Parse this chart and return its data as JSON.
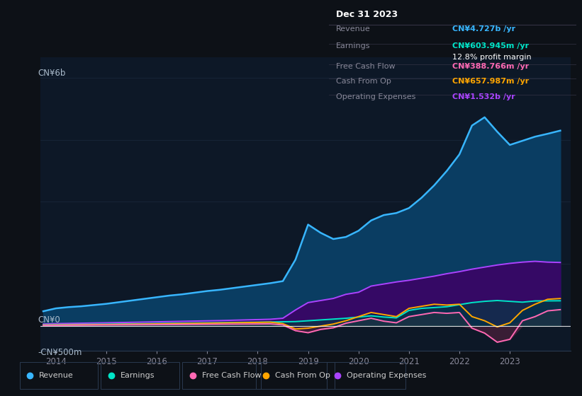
{
  "bg_color": "#0d1117",
  "plot_bg_color": "#0d1827",
  "grid_color": "#1e2d42",
  "title_text": "Dec 31 2023",
  "ylabel_top": "CN¥6b",
  "ylabel_zero": "CN¥0",
  "ylabel_neg": "-CN¥500m",
  "ylim": [
    -600,
    6500
  ],
  "xlim": [
    2013.7,
    2024.2
  ],
  "xticks": [
    2014,
    2015,
    2016,
    2017,
    2018,
    2019,
    2020,
    2021,
    2022,
    2023
  ],
  "legend": [
    {
      "label": "Revenue",
      "color": "#38b6ff"
    },
    {
      "label": "Earnings",
      "color": "#00e5c8"
    },
    {
      "label": "Free Cash Flow",
      "color": "#ff69b4"
    },
    {
      "label": "Cash From Op",
      "color": "#ffa500"
    },
    {
      "label": "Operating Expenses",
      "color": "#aa44ff"
    }
  ],
  "info_rows": [
    {
      "label": "Revenue",
      "value": "CN¥4.727b /yr",
      "value_color": "#38b6ff",
      "margin": null
    },
    {
      "label": "Earnings",
      "value": "CN¥603.945m /yr",
      "value_color": "#00e5c8",
      "margin": "12.8% profit margin"
    },
    {
      "label": "Free Cash Flow",
      "value": "CN¥388.766m /yr",
      "value_color": "#ff69b4",
      "margin": null
    },
    {
      "label": "Cash From Op",
      "value": "CN¥657.987m /yr",
      "value_color": "#ffa500",
      "margin": null
    },
    {
      "label": "Operating Expenses",
      "value": "CN¥1.532b /yr",
      "value_color": "#aa44ff",
      "margin": null
    }
  ],
  "x_years": [
    2013.75,
    2014.0,
    2014.25,
    2014.5,
    2014.75,
    2015.0,
    2015.25,
    2015.5,
    2015.75,
    2016.0,
    2016.25,
    2016.5,
    2016.75,
    2017.0,
    2017.25,
    2017.5,
    2017.75,
    2018.0,
    2018.25,
    2018.5,
    2018.75,
    2019.0,
    2019.25,
    2019.5,
    2019.75,
    2020.0,
    2020.25,
    2020.5,
    2020.75,
    2021.0,
    2021.25,
    2021.5,
    2021.75,
    2022.0,
    2022.25,
    2022.5,
    2022.75,
    2023.0,
    2023.25,
    2023.5,
    2023.75,
    2024.0
  ],
  "revenue": [
    350,
    420,
    450,
    470,
    500,
    530,
    570,
    610,
    650,
    690,
    730,
    760,
    800,
    840,
    870,
    910,
    950,
    990,
    1030,
    1080,
    1600,
    2450,
    2250,
    2100,
    2150,
    2300,
    2550,
    2680,
    2730,
    2850,
    3100,
    3400,
    3750,
    4150,
    4850,
    5050,
    4700,
    4380,
    4480,
    4580,
    4650,
    4727
  ],
  "earnings": [
    20,
    25,
    28,
    30,
    35,
    38,
    42,
    46,
    50,
    54,
    58,
    62,
    66,
    70,
    74,
    78,
    82,
    86,
    90,
    95,
    100,
    120,
    140,
    160,
    180,
    210,
    240,
    210,
    190,
    370,
    420,
    440,
    460,
    510,
    560,
    590,
    610,
    590,
    570,
    600,
    602,
    604
  ],
  "free_cash_flow": [
    8,
    10,
    12,
    14,
    16,
    18,
    20,
    22,
    24,
    26,
    28,
    30,
    32,
    34,
    36,
    38,
    40,
    42,
    44,
    20,
    -120,
    -170,
    -90,
    -50,
    60,
    120,
    180,
    110,
    70,
    220,
    270,
    320,
    300,
    320,
    -60,
    -180,
    -400,
    -330,
    120,
    220,
    360,
    389
  ],
  "cash_from_op": [
    15,
    18,
    20,
    22,
    25,
    28,
    32,
    36,
    40,
    44,
    48,
    52,
    56,
    60,
    65,
    70,
    75,
    80,
    85,
    50,
    -80,
    -60,
    -10,
    40,
    120,
    220,
    320,
    270,
    220,
    420,
    470,
    520,
    500,
    520,
    220,
    120,
    -30,
    70,
    370,
    520,
    640,
    658
  ],
  "op_expenses": [
    40,
    50,
    55,
    60,
    65,
    70,
    76,
    82,
    88,
    94,
    100,
    106,
    112,
    118,
    124,
    132,
    140,
    148,
    156,
    180,
    380,
    560,
    610,
    660,
    760,
    810,
    960,
    1010,
    1060,
    1100,
    1150,
    1200,
    1260,
    1310,
    1370,
    1420,
    1470,
    1510,
    1540,
    1560,
    1540,
    1532
  ]
}
